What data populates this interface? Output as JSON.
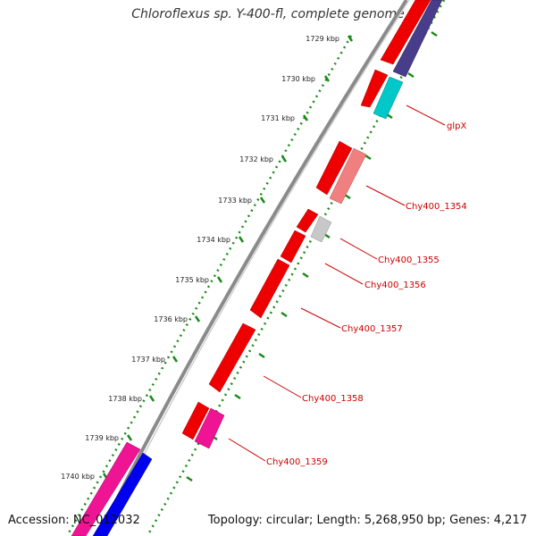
{
  "title": "Chloroflexus sp. Y-400-fl, complete genome",
  "footer": {
    "accession": "Accession: NC_012032",
    "summary": "Topology: circular; Length: 5,268,950 bp; Genes: 4,217"
  },
  "ruler": {
    "labels": [
      "1729 kbp",
      "1730 kbp",
      "1731 kbp",
      "1732 kbp",
      "1733 kbp",
      "1734 kbp",
      "1735 kbp",
      "1736 kbp",
      "1737 kbp",
      "1738 kbp",
      "1739 kbp",
      "1740 kbp"
    ]
  },
  "gene_labels": [
    "glpX",
    "Chy400_1354",
    "Chy400_1355",
    "Chy400_1356",
    "Chy400_1357",
    "Chy400_1358",
    "Chy400_1359"
  ],
  "colors": {
    "backbone": "#888888",
    "tick_green": "#1a8a1a",
    "gene_red": "#ee0000",
    "gene_light_red": "#f08080",
    "gene_cyan": "#00c8c8",
    "gene_purple": "#483d8b",
    "gene_magenta": "#ee1493",
    "gene_blue": "#0000ee",
    "gene_gray": "#c8c8c8",
    "label_red": "#cc0000"
  }
}
